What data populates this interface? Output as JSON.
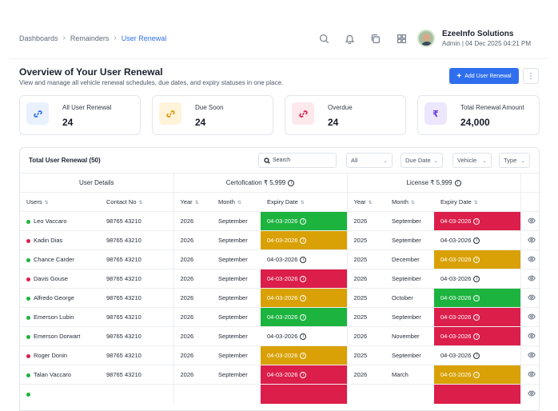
{
  "breadcrumb": [
    "Dashboards",
    "Remainders",
    "User Renewal"
  ],
  "header": {
    "company": "EzeeInfo Solutions",
    "role": "Admin | 04 Dec 2025 04:21 PM"
  },
  "page": {
    "title": "Overview of Your User Renewal",
    "subtitle": "View and manage all vehicle renewal schedules, due dates, and expiry statuses in one place.",
    "add_button": "Add User Renewal"
  },
  "stats": [
    {
      "label": "All User Renewal",
      "value": "24",
      "icon": "link-icon",
      "bg": "#e9f1ff",
      "color": "#2f6fed"
    },
    {
      "label": "Due Soon",
      "value": "24",
      "icon": "link-icon",
      "bg": "#fff3d9",
      "color": "#d99a05"
    },
    {
      "label": "Overdue",
      "value": "24",
      "icon": "link-icon",
      "bg": "#fde8ec",
      "color": "#dc1e4a"
    },
    {
      "label": "Total Renewal Amount",
      "value": "24,000",
      "icon": "rupee-icon",
      "bg": "#ede6ff",
      "color": "#6b3fd8"
    }
  ],
  "table": {
    "title": "Total User Renewal (50)",
    "search_placeholder": "Search",
    "filters": [
      "All",
      "Due Date",
      "Vehicle",
      "Type"
    ],
    "groups": {
      "user": "User Details",
      "cert": "Certofication ₹ 5,999",
      "license": "License ₹ 5,999"
    },
    "columns": [
      "Users",
      "Contact No",
      "Year",
      "Month",
      "Expiry Date",
      "Year",
      "Month",
      "Expiry Date"
    ],
    "status_colors": {
      "active": "#1cb33f",
      "inactive": "#dc1e4a"
    },
    "rows": [
      {
        "name": "Leo Vaccaro",
        "status": "active",
        "contact": "98765 43210",
        "c_year": "2026",
        "c_month": "September",
        "c_exp": "04-03-2026",
        "c_state": "green",
        "l_year": "2026",
        "l_month": "September",
        "l_exp": "04-03-2026",
        "l_state": "red"
      },
      {
        "name": "Kadin Dias",
        "status": "inactive",
        "contact": "98765 43210",
        "c_year": "2026",
        "c_month": "September",
        "c_exp": "04-03-2026",
        "c_state": "yellow",
        "l_year": "2025",
        "l_month": "September",
        "l_exp": "04-03-2026",
        "l_state": ""
      },
      {
        "name": "Chance Carder",
        "status": "active",
        "contact": "98765 43210",
        "c_year": "2026",
        "c_month": "September",
        "c_exp": "04-03-2026",
        "c_state": "",
        "l_year": "2025",
        "l_month": "December",
        "l_exp": "04-03-2026",
        "l_state": "yellow"
      },
      {
        "name": "Davis Gouse",
        "status": "inactive",
        "contact": "98765 43210",
        "c_year": "2026",
        "c_month": "September",
        "c_exp": "04-03-2026",
        "c_state": "red",
        "l_year": "2026",
        "l_month": "September",
        "l_exp": "04-03-2026",
        "l_state": ""
      },
      {
        "name": "Alfredo George",
        "status": "active",
        "contact": "98765 43210",
        "c_year": "2026",
        "c_month": "September",
        "c_exp": "04-03-2026",
        "c_state": "yellow",
        "l_year": "2025",
        "l_month": "October",
        "l_exp": "04-03-2026",
        "l_state": "green"
      },
      {
        "name": "Emerson Lubin",
        "status": "active",
        "contact": "98765 43210",
        "c_year": "2026",
        "c_month": "September",
        "c_exp": "04-03-2026",
        "c_state": "green",
        "l_year": "2025",
        "l_month": "September",
        "l_exp": "04-03-2026",
        "l_state": "red"
      },
      {
        "name": "Emerson Dorwart",
        "status": "active",
        "contact": "98765 43210",
        "c_year": "2026",
        "c_month": "September",
        "c_exp": "04-03-2026",
        "c_state": "",
        "l_year": "2026",
        "l_month": "November",
        "l_exp": "04-03-2026",
        "l_state": "red"
      },
      {
        "name": "Roger Donin",
        "status": "inactive",
        "contact": "98765 43210",
        "c_year": "2026",
        "c_month": "September",
        "c_exp": "04-03-2026",
        "c_state": "yellow",
        "l_year": "2025",
        "l_month": "September",
        "l_exp": "04-03-2026",
        "l_state": ""
      },
      {
        "name": "Talan Vaccaro",
        "status": "active",
        "contact": "98765 43210",
        "c_year": "2026",
        "c_month": "September",
        "c_exp": "04-03-2026",
        "c_state": "red",
        "l_year": "2026",
        "l_month": "March",
        "l_exp": "04-03-2026",
        "l_state": "yellow"
      },
      {
        "name": "",
        "status": "active",
        "contact": "",
        "c_year": "",
        "c_month": "",
        "c_exp": "",
        "c_state": "red",
        "l_year": "",
        "l_month": "",
        "l_exp": "",
        "l_state": "red"
      }
    ]
  }
}
